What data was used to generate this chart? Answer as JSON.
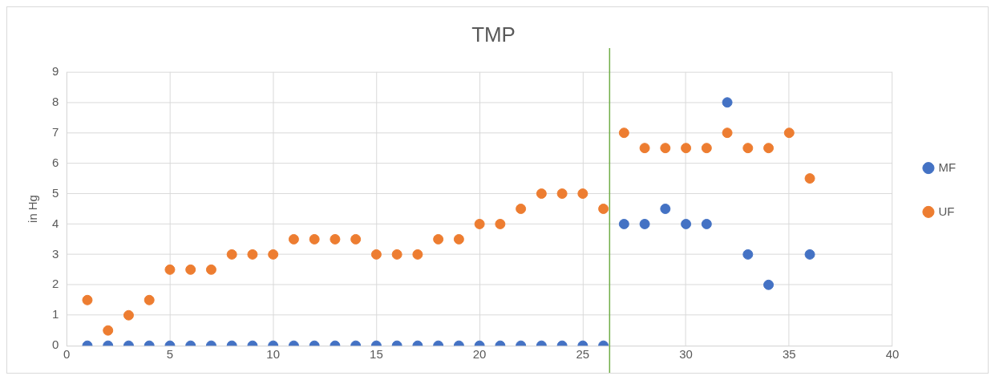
{
  "chart_data": {
    "type": "scatter",
    "title": "TMP",
    "ylabel": "in Hg",
    "x": [
      1,
      2,
      3,
      4,
      5,
      6,
      7,
      8,
      9,
      10,
      11,
      12,
      13,
      14,
      15,
      16,
      17,
      18,
      19,
      20,
      21,
      22,
      23,
      24,
      25,
      26,
      27,
      28,
      29,
      30,
      31,
      32,
      33,
      34,
      35,
      36
    ],
    "series": [
      {
        "name": "MF",
        "color": "#4472c4",
        "values": [
          0,
          0,
          0,
          0,
          0,
          0,
          0,
          0,
          0,
          0,
          0,
          0,
          0,
          0,
          0,
          0,
          0,
          0,
          0,
          0,
          0,
          0,
          0,
          0,
          0,
          0,
          4,
          4,
          4.5,
          4,
          4,
          8,
          3,
          2,
          null,
          3
        ]
      },
      {
        "name": "UF",
        "color": "#ed7d31",
        "values": [
          1.5,
          0.5,
          1,
          1.5,
          2.5,
          2.5,
          2.5,
          3,
          3,
          3,
          3.5,
          3.5,
          3.5,
          3.5,
          3,
          3,
          3,
          3.5,
          3.5,
          4,
          4,
          4.5,
          5,
          5,
          5,
          4.5,
          7,
          6.5,
          6.5,
          6.5,
          6.5,
          7,
          6.5,
          6.5,
          7,
          5.5
        ]
      }
    ],
    "xlim": [
      0,
      40
    ],
    "xticks": [
      0,
      5,
      10,
      15,
      20,
      25,
      30,
      35,
      40
    ],
    "ylim": [
      0,
      9
    ],
    "yticks": [
      0,
      1,
      2,
      3,
      4,
      5,
      6,
      7,
      8,
      9
    ],
    "ref_lines": [
      {
        "axis": "x",
        "value": 26.3,
        "color": "#70ad47"
      }
    ],
    "grid": true,
    "legend": "right",
    "marker": "circle"
  }
}
